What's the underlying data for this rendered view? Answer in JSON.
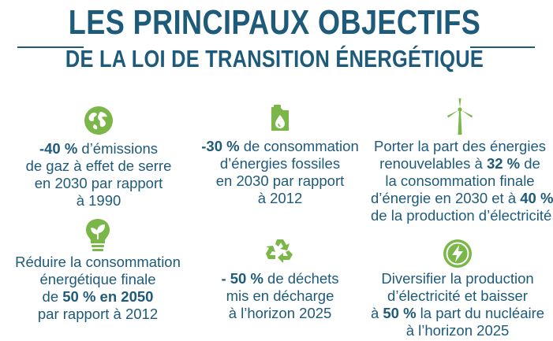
{
  "title": {
    "line1": "LES PRINCIPAUX OBJECTIFS",
    "line2": "DE LA LOI DE TRANSITION ÉNERGÉTIQUE"
  },
  "colors": {
    "text": "#1e5a7a",
    "icon_green": "#7ab648"
  },
  "items": [
    {
      "icon": "globe-icon",
      "lines": [
        {
          "bold": "-40 %",
          "text": " d’émissions"
        },
        {
          "bold": "",
          "text": "de gaz à effet de serre"
        },
        {
          "bold": "",
          "text": "en 2030 par rapport"
        },
        {
          "bold": "",
          "text": "à 1990"
        }
      ]
    },
    {
      "icon": "fuel-can-icon",
      "lines": [
        {
          "bold": "-30 %",
          "text": " de consommation"
        },
        {
          "bold": "",
          "text": "d’énergies fossiles"
        },
        {
          "bold": "",
          "text": "en 2030 par rapport"
        },
        {
          "bold": "",
          "text": "à 2012"
        }
      ]
    },
    {
      "icon": "wind-turbine-icon",
      "lines": [
        {
          "pre": "Porter la part des énergies",
          "bold": "",
          "post": ""
        },
        {
          "pre": "renouvelables à ",
          "bold": "32 %",
          "post": " de"
        },
        {
          "pre": "la consommation finale",
          "bold": "",
          "post": ""
        },
        {
          "pre": "d’énergie en 2030 et à ",
          "bold": "40 %",
          "post": ""
        },
        {
          "pre": "de la production d’électricité",
          "bold": "",
          "post": ""
        }
      ]
    },
    {
      "icon": "lightbulb-icon",
      "lines": [
        {
          "pre": "Réduire la consommation",
          "bold": "",
          "post": ""
        },
        {
          "pre": "énergétique finale",
          "bold": "",
          "post": ""
        },
        {
          "pre": "de ",
          "bold": "50 % en 2050",
          "post": ""
        },
        {
          "pre": "par rapport à 2012",
          "bold": "",
          "post": ""
        }
      ]
    },
    {
      "icon": "recycle-icon",
      "lines": [
        {
          "pre": "",
          "bold": "- 50 %",
          "post": " de déchets"
        },
        {
          "pre": "mis en décharge",
          "bold": "",
          "post": ""
        },
        {
          "pre": "à l’horizon 2025",
          "bold": "",
          "post": ""
        }
      ]
    },
    {
      "icon": "lightning-icon",
      "lines": [
        {
          "pre": "Diversifier la production",
          "bold": "",
          "post": ""
        },
        {
          "pre": "d’électricité et baisser",
          "bold": "",
          "post": ""
        },
        {
          "pre": "à ",
          "bold": "50 %",
          "post": " la part du nucléaire"
        },
        {
          "pre": "à l’horizon 2025",
          "bold": "",
          "post": ""
        }
      ]
    }
  ]
}
